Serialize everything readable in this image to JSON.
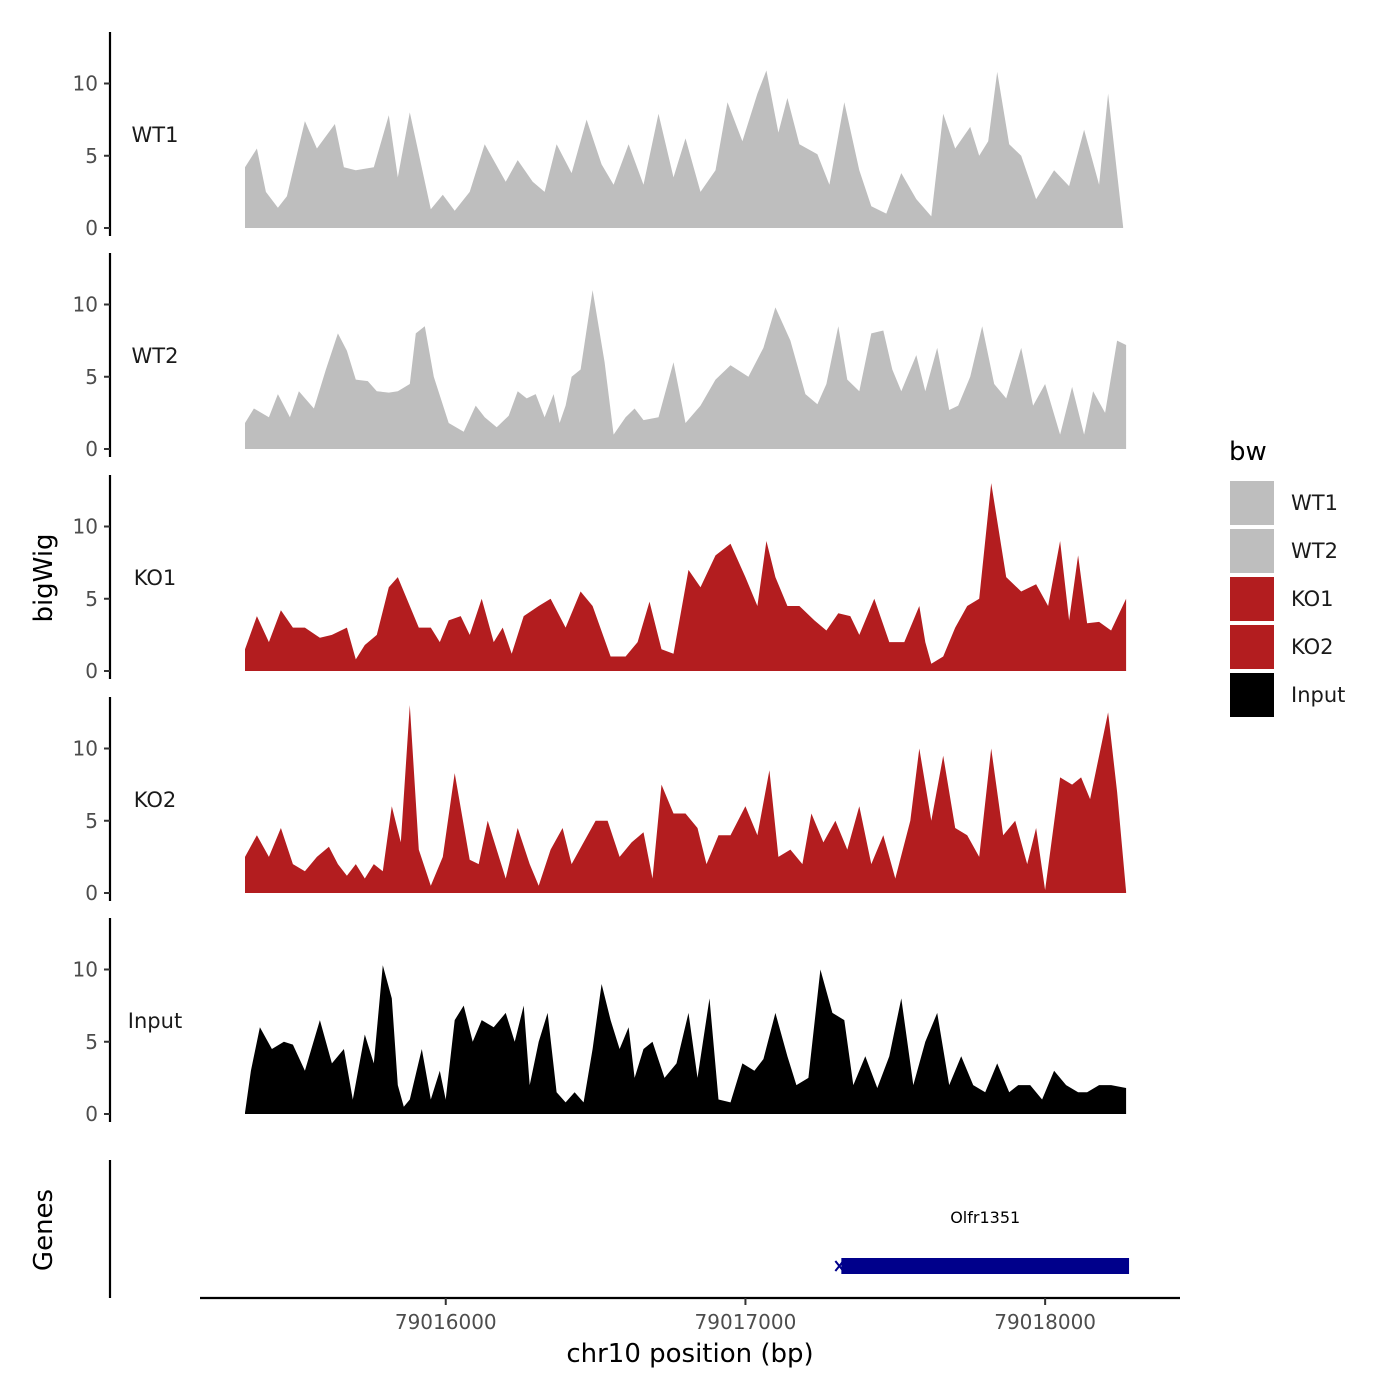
{
  "chart_data": {
    "type": "area",
    "ylabel": "bigWig",
    "xlabel": "chr10 position (bp)",
    "genes_label": "Genes",
    "legend": {
      "title": "bw",
      "entries": [
        {
          "label": "WT1",
          "color": "#bebebe"
        },
        {
          "label": "WT2",
          "color": "#bebebe"
        },
        {
          "label": "KO1",
          "color": "#b31d1f"
        },
        {
          "label": "KO2",
          "color": "#b31d1f"
        },
        {
          "label": "Input",
          "color": "#000000"
        }
      ]
    },
    "xlim": [
      79015180,
      79018450
    ],
    "x_ticks": [
      {
        "value": 79016000,
        "label": "79016000"
      },
      {
        "value": 79017000,
        "label": "79017000"
      },
      {
        "value": 79018000,
        "label": "79018000"
      }
    ],
    "ylim": [
      0,
      13.5
    ],
    "y_ticks": [
      {
        "value": 0,
        "label": "0"
      },
      {
        "value": 5,
        "label": "5"
      },
      {
        "value": 10,
        "label": "10"
      }
    ],
    "series": [
      {
        "name": "WT1",
        "label": "WT1",
        "color": "#bebebe",
        "x": [
          79015330,
          79015370,
          79015400,
          79015440,
          79015470,
          79015530,
          79015570,
          79015630,
          79015660,
          79015700,
          79015760,
          79015810,
          79015840,
          79015880,
          79015950,
          79015990,
          79016030,
          79016080,
          79016130,
          79016200,
          79016240,
          79016290,
          79016330,
          79016370,
          79016420,
          79016470,
          79016520,
          79016560,
          79016610,
          79016660,
          79016710,
          79016760,
          79016800,
          79016850,
          79016900,
          79016940,
          79016990,
          79017040,
          79017070,
          79017110,
          79017140,
          79017180,
          79017240,
          79017280,
          79017330,
          79017380,
          79017420,
          79017470,
          79017520,
          79017570,
          79017620,
          79017660,
          79017700,
          79017750,
          79017780,
          79017810,
          79017840,
          79017880,
          79017920,
          79017970,
          79018030,
          79018080,
          79018130,
          79018180,
          79018210,
          79018260
        ],
        "values": [
          4.2,
          5.5,
          2.5,
          1.4,
          2.2,
          7.4,
          5.5,
          7.2,
          4.2,
          4.0,
          4.2,
          7.8,
          3.5,
          8.0,
          1.3,
          2.3,
          1.2,
          2.5,
          5.8,
          3.2,
          4.7,
          3.2,
          2.5,
          5.8,
          3.8,
          7.5,
          4.4,
          3.0,
          5.8,
          3.0,
          7.9,
          3.5,
          6.2,
          2.5,
          4.0,
          8.7,
          6.0,
          9.3,
          10.9,
          6.6,
          9.0,
          5.8,
          5.1,
          3.0,
          8.7,
          4.0,
          1.5,
          1.0,
          3.8,
          2.0,
          0.8,
          7.9,
          5.5,
          7.0,
          5.0,
          6.0,
          10.8,
          5.8,
          5.0,
          2.0,
          4.0,
          2.9,
          6.8,
          3.0,
          9.3,
          0.1
        ]
      },
      {
        "name": "WT2",
        "label": "WT2",
        "color": "#bebebe",
        "x": [
          79015330,
          79015360,
          79015410,
          79015440,
          79015480,
          79015510,
          79015560,
          79015600,
          79015640,
          79015670,
          79015700,
          79015740,
          79015770,
          79015810,
          79015840,
          79015880,
          79015900,
          79015930,
          79015960,
          79016010,
          79016060,
          79016100,
          79016130,
          79016170,
          79016210,
          79016240,
          79016270,
          79016300,
          79016330,
          79016360,
          79016380,
          79016400,
          79016420,
          79016450,
          79016490,
          79016530,
          79016560,
          79016600,
          79016630,
          79016660,
          79016710,
          79016760,
          79016800,
          79016850,
          79016900,
          79016950,
          79017010,
          79017060,
          79017100,
          79017150,
          79017200,
          79017240,
          79017270,
          79017310,
          79017340,
          79017380,
          79017420,
          79017460,
          79017490,
          79017520,
          79017570,
          79017600,
          79017640,
          79017680,
          79017710,
          79017750,
          79017790,
          79017830,
          79017870,
          79017920,
          79017960,
          79018000,
          79018050,
          79018090,
          79018130,
          79018160,
          79018200,
          79018240,
          79018270
        ],
        "values": [
          1.8,
          2.8,
          2.2,
          3.8,
          2.2,
          4.0,
          2.8,
          5.5,
          8.0,
          6.8,
          4.8,
          4.7,
          4.0,
          3.9,
          4.0,
          4.5,
          8.0,
          8.5,
          5.0,
          1.8,
          1.2,
          3.0,
          2.2,
          1.5,
          2.3,
          4.0,
          3.5,
          3.8,
          2.2,
          3.8,
          1.8,
          3.0,
          5.0,
          5.5,
          11.0,
          6.0,
          1.0,
          2.2,
          2.8,
          2.0,
          2.2,
          6.0,
          1.8,
          3.0,
          4.8,
          5.8,
          5.0,
          7.0,
          9.8,
          7.5,
          3.8,
          3.1,
          4.5,
          8.5,
          4.8,
          4.0,
          8.0,
          8.2,
          5.5,
          4.0,
          6.5,
          4.0,
          7.0,
          2.7,
          3.0,
          5.0,
          8.5,
          4.5,
          3.5,
          7.0,
          3.0,
          4.5,
          1.0,
          4.3,
          1.0,
          4.0,
          2.5,
          7.5,
          7.2
        ]
      },
      {
        "name": "KO1",
        "label": "KO1",
        "color": "#b31d1f",
        "x": [
          79015330,
          79015370,
          79015410,
          79015450,
          79015490,
          79015530,
          79015580,
          79015620,
          79015670,
          79015700,
          79015730,
          79015770,
          79015810,
          79015840,
          79015870,
          79015910,
          79015950,
          79015980,
          79016010,
          79016050,
          79016080,
          79016120,
          79016160,
          79016190,
          79016220,
          79016260,
          79016310,
          79016350,
          79016400,
          79016450,
          79016490,
          79016550,
          79016600,
          79016640,
          79016680,
          79016720,
          79016760,
          79016810,
          79016850,
          79016900,
          79016950,
          79017000,
          79017040,
          79017070,
          79017100,
          79017140,
          79017180,
          79017230,
          79017270,
          79017310,
          79017350,
          79017380,
          79017430,
          79017480,
          79017530,
          79017580,
          79017600,
          79017620,
          79017660,
          79017700,
          79017740,
          79017780,
          79017820,
          79017870,
          79017920,
          79017970,
          79018010,
          79018050,
          79018080,
          79018110,
          79018140,
          79018180,
          79018220,
          79018270
        ],
        "values": [
          1.5,
          3.8,
          2.0,
          4.2,
          3.0,
          3.0,
          2.3,
          2.5,
          3.0,
          0.8,
          1.8,
          2.5,
          5.8,
          6.5,
          5.0,
          3.0,
          3.0,
          2.0,
          3.5,
          3.8,
          2.5,
          5.0,
          2.0,
          3.0,
          1.2,
          3.8,
          4.5,
          5.0,
          3.0,
          5.5,
          4.5,
          1.0,
          1.0,
          2.0,
          4.8,
          1.5,
          1.2,
          7.0,
          5.8,
          8.0,
          8.8,
          6.5,
          4.5,
          9.0,
          6.5,
          4.5,
          4.5,
          3.5,
          2.8,
          4.0,
          3.8,
          2.5,
          5.0,
          2.0,
          2.0,
          4.5,
          2.0,
          0.5,
          1.0,
          3.0,
          4.5,
          5.0,
          13.0,
          6.5,
          5.5,
          6.0,
          4.5,
          9.0,
          3.5,
          8.0,
          3.3,
          3.4,
          2.8,
          5.0
        ]
      },
      {
        "name": "KO2",
        "label": "KO2",
        "color": "#b31d1f",
        "x": [
          79015330,
          79015370,
          79015410,
          79015450,
          79015490,
          79015530,
          79015570,
          79015610,
          79015640,
          79015670,
          79015700,
          79015730,
          79015760,
          79015790,
          79015820,
          79015850,
          79015880,
          79015910,
          79015950,
          79015990,
          79016030,
          79016080,
          79016110,
          79016140,
          79016170,
          79016200,
          79016240,
          79016280,
          79016310,
          79016350,
          79016390,
          79016420,
          79016460,
          79016500,
          79016540,
          79016580,
          79016620,
          79016660,
          79016690,
          79016720,
          79016760,
          79016800,
          79016840,
          79016870,
          79016910,
          79016950,
          79017000,
          79017040,
          79017080,
          79017110,
          79017150,
          79017190,
          79017220,
          79017260,
          79017300,
          79017340,
          79017380,
          79017420,
          79017460,
          79017500,
          79017550,
          79017580,
          79017620,
          79017660,
          79017700,
          79017740,
          79017780,
          79017820,
          79017860,
          79017900,
          79017940,
          79017970,
          79018000,
          79018050,
          79018090,
          79018120,
          79018150,
          79018180,
          79018210,
          79018240,
          79018270
        ],
        "values": [
          2.5,
          4.0,
          2.5,
          4.5,
          2.0,
          1.5,
          2.5,
          3.2,
          2.0,
          1.2,
          2.0,
          1.0,
          2.0,
          1.5,
          6.0,
          3.5,
          13.0,
          3.0,
          0.5,
          2.5,
          8.3,
          2.3,
          2.0,
          5.0,
          3.0,
          1.0,
          4.5,
          2.0,
          0.5,
          3.0,
          4.5,
          2.0,
          3.5,
          5.0,
          5.0,
          2.5,
          3.5,
          4.2,
          1.0,
          7.5,
          5.5,
          5.5,
          4.5,
          2.0,
          4.0,
          4.0,
          6.0,
          4.0,
          8.5,
          2.5,
          3.0,
          2.0,
          5.5,
          3.5,
          5.0,
          3.0,
          6.0,
          2.0,
          4.0,
          1.0,
          5.0,
          10.0,
          5.0,
          9.5,
          4.5,
          4.0,
          2.5,
          10.0,
          4.0,
          5.0,
          2.0,
          4.5,
          0.2,
          8.0,
          7.5,
          8.0,
          6.5,
          9.5,
          12.5,
          7.0,
          0.1
        ]
      },
      {
        "name": "Input",
        "label": "Input",
        "color": "#000000",
        "x": [
          79015330,
          79015350,
          79015380,
          79015420,
          79015460,
          79015490,
          79015530,
          79015580,
          79015620,
          79015660,
          79015690,
          79015730,
          79015760,
          79015790,
          79015820,
          79015840,
          79015860,
          79015880,
          79015920,
          79015950,
          79015980,
          79016000,
          79016030,
          79016060,
          79016090,
          79016120,
          79016160,
          79016200,
          79016230,
          79016260,
          79016280,
          79016310,
          79016340,
          79016370,
          79016400,
          79016430,
          79016460,
          79016490,
          79016520,
          79016550,
          79016580,
          79016610,
          79016630,
          79016660,
          79016690,
          79016730,
          79016770,
          79016810,
          79016840,
          79016880,
          79016910,
          79016950,
          79016990,
          79017030,
          79017060,
          79017100,
          79017140,
          79017170,
          79017210,
          79017250,
          79017290,
          79017330,
          79017360,
          79017400,
          79017440,
          79017480,
          79017520,
          79017560,
          79017600,
          79017640,
          79017680,
          79017720,
          79017760,
          79017800,
          79017840,
          79017880,
          79017910,
          79017950,
          79017990,
          79018030,
          79018070,
          79018110,
          79018140,
          79018180,
          79018220,
          79018270
        ],
        "values": [
          0.1,
          3.0,
          6.0,
          4.5,
          5.0,
          4.8,
          3.0,
          6.5,
          3.5,
          4.5,
          1.0,
          5.5,
          3.5,
          10.3,
          8.0,
          2.0,
          0.5,
          1.0,
          4.5,
          1.0,
          3.0,
          1.0,
          6.5,
          7.5,
          5.0,
          6.5,
          6.0,
          7.0,
          5.0,
          7.5,
          2.0,
          5.0,
          7.0,
          1.5,
          0.8,
          1.5,
          0.8,
          4.5,
          9.0,
          6.5,
          4.5,
          6.0,
          2.5,
          4.5,
          5.0,
          2.5,
          3.5,
          7.0,
          2.5,
          8.0,
          1.0,
          0.8,
          3.5,
          3.0,
          3.8,
          7.0,
          4.0,
          2.0,
          2.5,
          10.0,
          7.0,
          6.5,
          2.0,
          4.0,
          1.8,
          4.0,
          8.0,
          2.0,
          5.0,
          7.0,
          2.0,
          4.0,
          2.0,
          1.5,
          3.5,
          1.5,
          2.0,
          2.0,
          1.0,
          3.0,
          2.0,
          1.5,
          1.5,
          2.0,
          2.0,
          1.8
        ]
      }
    ],
    "genes": [
      {
        "name": "Olfr1351",
        "start": 79017320,
        "end": 79018280,
        "color": "#00008b"
      }
    ]
  }
}
